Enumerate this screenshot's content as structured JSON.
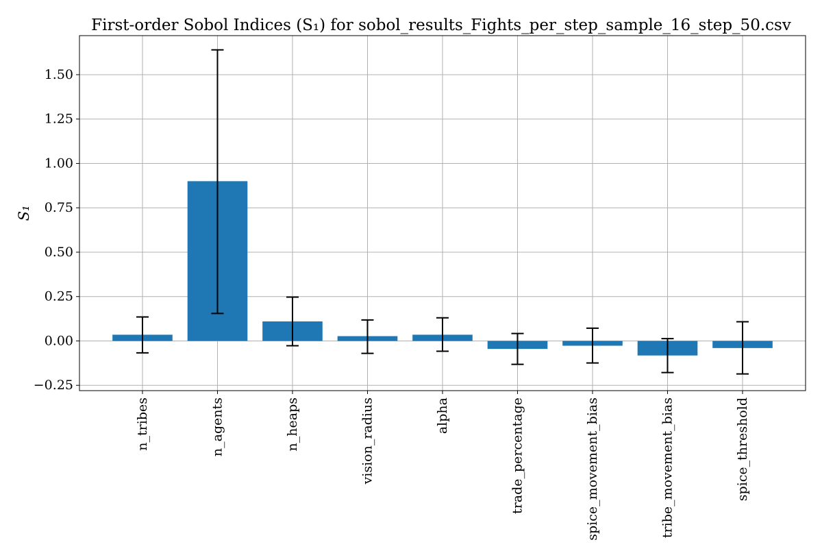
{
  "chart_data": {
    "type": "bar",
    "title": "First-order Sobol Indices (S₁) for sobol_results_Fights_per_step_sample_16_step_50.csv",
    "xlabel": "",
    "ylabel": "S₁",
    "categories": [
      "n_tribes",
      "n_agents",
      "n_heaps",
      "vision_radius",
      "alpha",
      "trade_percentage",
      "spice_movement_bias",
      "tribe_movement_bias",
      "spice_threshold"
    ],
    "values": [
      0.035,
      0.9,
      0.11,
      0.027,
      0.035,
      -0.045,
      -0.027,
      -0.082,
      -0.04
    ],
    "error_low": [
      -0.067,
      0.155,
      -0.027,
      -0.07,
      -0.058,
      -0.132,
      -0.124,
      -0.178,
      -0.186
    ],
    "error_high": [
      0.135,
      1.64,
      0.247,
      0.118,
      0.13,
      0.042,
      0.072,
      0.013,
      0.108
    ],
    "ylim": [
      -0.28,
      1.72
    ],
    "yticks": [
      -0.25,
      0.0,
      0.25,
      0.5,
      0.75,
      1.0,
      1.25,
      1.5
    ],
    "ytick_labels": [
      "−0.25",
      "0.00",
      "0.25",
      "0.50",
      "0.75",
      "1.00",
      "1.25",
      "1.50"
    ],
    "grid": true,
    "bar_color": "#1f77b4",
    "error_color": "#000000"
  }
}
